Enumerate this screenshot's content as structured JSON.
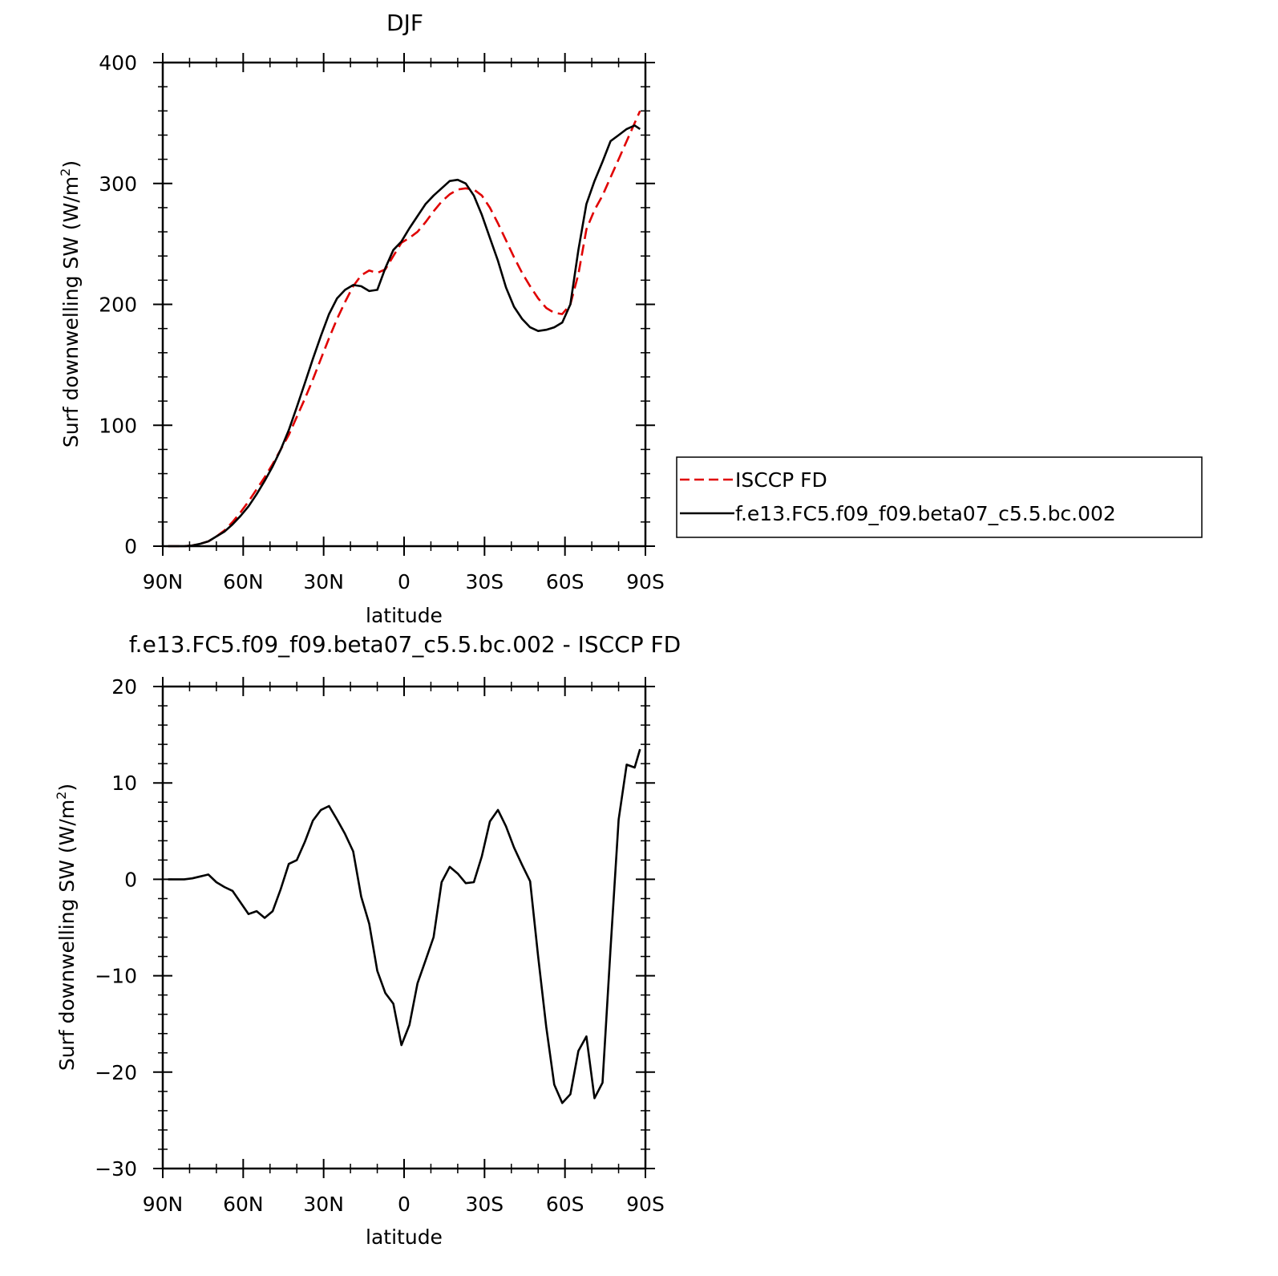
{
  "chart_data": [
    {
      "type": "line",
      "title": "DJF",
      "xlabel": "latitude",
      "ylabel": "Surf downwelling SW (W/m",
      "ylabel_sup": "2",
      "ylabel_end": ")",
      "xlim": [
        -90,
        90
      ],
      "ylim": [
        0,
        400
      ],
      "xticks": [
        -90,
        -60,
        -30,
        0,
        30,
        60,
        90
      ],
      "xtick_labels": [
        "90N",
        "60N",
        "30N",
        "0",
        "30S",
        "60S",
        "90S"
      ],
      "yticks": [
        0,
        100,
        200,
        300,
        400
      ],
      "ytick_labels": [
        "0",
        "100",
        "200",
        "300",
        "400"
      ],
      "grid": false,
      "legend": {
        "placement": "right",
        "entries": [
          "ISCCP FD",
          "f.e13.FC5.f09_f09.beta07_c5.5.bc.002"
        ]
      },
      "series": [
        {
          "name": "ISCCP FD",
          "color": "#e00000",
          "dash": true,
          "x": [
            -88,
            -85,
            -82,
            -79,
            -76,
            -73,
            -70,
            -67,
            -64,
            -61,
            -58,
            -55,
            -52,
            -49,
            -46,
            -43,
            -40,
            -37,
            -34,
            -31,
            -28,
            -25,
            -22,
            -19,
            -16,
            -13,
            -10,
            -7,
            -4,
            -1,
            2,
            5,
            8,
            11,
            14,
            17,
            20,
            23,
            26,
            29,
            32,
            35,
            38,
            41,
            44,
            47,
            50,
            53,
            56,
            59,
            62,
            65,
            68,
            71,
            74,
            77,
            80,
            83,
            86,
            88
          ],
          "y": [
            0,
            0,
            0,
            0.5,
            2,
            4,
            8,
            13,
            20,
            28,
            37,
            47,
            57,
            68,
            80,
            92,
            107,
            122,
            138,
            155,
            172,
            188,
            202,
            215,
            224,
            228,
            226,
            229,
            240,
            251,
            255,
            260,
            268,
            277,
            285,
            291,
            295,
            296,
            295,
            290,
            280,
            267,
            253,
            239,
            226,
            215,
            205,
            197,
            193,
            192,
            200,
            225,
            262,
            278,
            290,
            305,
            320,
            335,
            350,
            360
          ]
        },
        {
          "name": "f.e13.FC5.f09_f09.beta07_c5.5.bc.002",
          "color": "#000000",
          "dash": false,
          "x": [
            -88,
            -85,
            -82,
            -79,
            -76,
            -73,
            -70,
            -67,
            -64,
            -61,
            -58,
            -55,
            -52,
            -49,
            -46,
            -43,
            -40,
            -37,
            -34,
            -31,
            -28,
            -25,
            -22,
            -19,
            -16,
            -13,
            -10,
            -7,
            -4,
            -1,
            2,
            5,
            8,
            11,
            14,
            17,
            20,
            23,
            26,
            29,
            32,
            35,
            38,
            41,
            44,
            47,
            50,
            53,
            56,
            59,
            62,
            65,
            68,
            71,
            74,
            77,
            80,
            83,
            86,
            88
          ],
          "y": [
            0,
            0,
            0,
            0.5,
            2,
            4,
            8,
            12,
            18,
            25,
            33,
            43,
            54,
            66,
            80,
            96,
            115,
            135,
            155,
            174,
            192,
            205,
            212,
            216,
            215,
            211,
            212,
            230,
            245,
            252,
            263,
            273,
            283,
            290,
            296,
            302,
            303,
            300,
            290,
            274,
            255,
            236,
            214,
            198,
            188,
            181,
            178,
            179,
            181,
            185,
            200,
            245,
            283,
            302,
            318,
            335,
            340,
            345,
            348,
            345
          ]
        }
      ]
    },
    {
      "type": "line",
      "title": "f.e13.FC5.f09_f09.beta07_c5.5.bc.002 - ISCCP FD",
      "xlabel": "latitude",
      "ylabel": "Surf downwelling SW (W/m",
      "ylabel_sup": "2",
      "ylabel_end": ")",
      "xlim": [
        -90,
        90
      ],
      "ylim": [
        -30,
        20
      ],
      "xticks": [
        -90,
        -60,
        -30,
        0,
        30,
        60,
        90
      ],
      "xtick_labels": [
        "90N",
        "60N",
        "30N",
        "0",
        "30S",
        "60S",
        "90S"
      ],
      "yticks": [
        -30,
        -20,
        -10,
        0,
        10,
        20
      ],
      "ytick_labels": [
        "−30",
        "−20",
        "−10",
        "0",
        "10",
        "20"
      ],
      "grid": false,
      "series": [
        {
          "color": "#000000",
          "dash": false,
          "x": [
            -88,
            -85,
            -82,
            -79,
            -76,
            -73,
            -70,
            -67,
            -64,
            -61,
            -58,
            -55,
            -52,
            -49,
            -46,
            -43,
            -40,
            -37,
            -34,
            -31,
            -28,
            -25,
            -22,
            -19,
            -16,
            -13,
            -10,
            -7,
            -4,
            -1,
            2,
            5,
            8,
            11,
            14,
            17,
            20,
            23,
            26,
            29,
            32,
            35,
            38,
            41,
            44,
            47,
            50,
            53,
            56,
            59,
            62,
            65,
            68,
            71,
            74,
            77,
            80,
            83,
            86,
            88
          ],
          "y": [
            0,
            0,
            0,
            0.1,
            0.3,
            0.5,
            -0.3,
            -0.8,
            -1.2,
            -2.4,
            -3.6,
            -3.3,
            -4.0,
            -3.3,
            -1.0,
            1.6,
            2.0,
            3.9,
            6.1,
            7.2,
            7.6,
            6.2,
            4.7,
            2.9,
            -1.8,
            -4.6,
            -9.5,
            -11.8,
            -12.9,
            -17.2,
            -15.1,
            -10.8,
            -8.4,
            -6.0,
            -0.3,
            1.3,
            0.6,
            -0.4,
            -0.3,
            2.4,
            6.0,
            7.2,
            5.5,
            3.3,
            1.5,
            -0.2,
            -8.0,
            -15.3,
            -21.3,
            -23.2,
            -22.3,
            -17.8,
            -16.3,
            -22.7,
            -21.1,
            -7.2,
            6.2,
            11.9,
            11.6,
            13.5
          ]
        }
      ]
    }
  ]
}
